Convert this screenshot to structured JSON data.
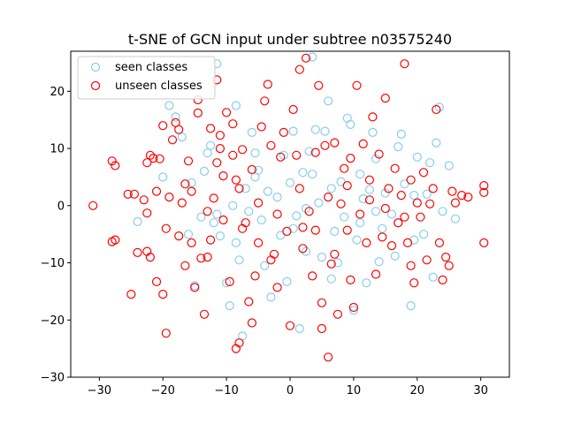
{
  "chart_data": {
    "type": "scatter",
    "title": "t-SNE of GCN input under subtree n03575240",
    "xlabel": "",
    "ylabel": "",
    "xlim": [
      -34.5,
      34.5
    ],
    "ylim": [
      -30,
      27
    ],
    "xticks": [
      -30,
      -20,
      -10,
      0,
      10,
      20,
      30
    ],
    "yticks": [
      -30,
      -20,
      -10,
      0,
      10,
      20
    ],
    "grid": false,
    "legend_position": "upper-left",
    "series": [
      {
        "name": "seen classes",
        "color": "#87ceeb",
        "marker": "hollow-circle",
        "points": [
          [
            -24,
            -2.8
          ],
          [
            -19,
            17.5
          ],
          [
            -18,
            15.5
          ],
          [
            -17,
            12
          ],
          [
            -15.5,
            4
          ],
          [
            -13.5,
            6
          ],
          [
            -13,
            9.2
          ],
          [
            -12.5,
            10.5
          ],
          [
            -11.5,
            24.8
          ],
          [
            -11.5,
            -1.5
          ],
          [
            -12,
            -3
          ],
          [
            -11,
            -5.3
          ],
          [
            -10,
            -13.5
          ],
          [
            -9.5,
            -17.5
          ],
          [
            -8.5,
            17.5
          ],
          [
            -8,
            -9.5
          ],
          [
            -7.5,
            -22.8
          ],
          [
            -7,
            3
          ],
          [
            -6,
            12.8
          ],
          [
            -5.5,
            9.2
          ],
          [
            -5.5,
            5
          ],
          [
            -5,
            6.2
          ],
          [
            -4.5,
            -2.5
          ],
          [
            -4,
            -10.5
          ],
          [
            -3,
            -16
          ],
          [
            -2,
            1.5
          ],
          [
            -1.5,
            -5.2
          ],
          [
            -1,
            8.8
          ],
          [
            -0.5,
            -13.3
          ],
          [
            0,
            4
          ],
          [
            0.5,
            13
          ],
          [
            1,
            -1.8
          ],
          [
            1.5,
            -21.5
          ],
          [
            2,
            5.8
          ],
          [
            2.5,
            -8
          ],
          [
            3,
            9.5
          ],
          [
            3.5,
            26
          ],
          [
            4,
            13.3
          ],
          [
            4.5,
            0.5
          ],
          [
            5,
            -9
          ],
          [
            5.5,
            13
          ],
          [
            6,
            18.3
          ],
          [
            6.5,
            -12.8
          ],
          [
            7,
            -4.5
          ],
          [
            8,
            4.2
          ],
          [
            9,
            15.3
          ],
          [
            9.5,
            14.2
          ],
          [
            10,
            -18.3
          ],
          [
            10.5,
            -6
          ],
          [
            11,
            5.5
          ],
          [
            11.5,
            1.2
          ],
          [
            12.5,
            2.8
          ],
          [
            13,
            12.8
          ],
          [
            13.5,
            8.2
          ],
          [
            14,
            -9.8
          ],
          [
            14.5,
            -4
          ],
          [
            15,
            2.2
          ],
          [
            16,
            -1.5
          ],
          [
            16.5,
            -8.8
          ],
          [
            17,
            10.3
          ],
          [
            17.5,
            12.5
          ],
          [
            18,
            3.8
          ],
          [
            19,
            -17.5
          ],
          [
            19.5,
            1.8
          ],
          [
            20,
            8.5
          ],
          [
            21,
            -5
          ],
          [
            22,
            7.5
          ],
          [
            22.5,
            -12.5
          ],
          [
            23,
            11
          ],
          [
            23.5,
            17.2
          ],
          [
            24,
            -1
          ],
          [
            25,
            7
          ],
          [
            26,
            -2.3
          ],
          [
            -20,
            5
          ],
          [
            -16,
            -5
          ],
          [
            -14,
            -2
          ],
          [
            -9,
            0
          ],
          [
            -6.5,
            -1
          ],
          [
            -3.5,
            2.5
          ],
          [
            0.5,
            -4
          ],
          [
            2.5,
            -0.5
          ],
          [
            3.5,
            5.5
          ],
          [
            6.5,
            3
          ],
          [
            8.5,
            -2
          ],
          [
            11,
            -3
          ],
          [
            13.5,
            -1
          ],
          [
            17,
            -3
          ],
          [
            19.5,
            -6
          ],
          [
            21.5,
            2
          ],
          [
            -15,
            -14
          ],
          [
            -8.5,
            -6.5
          ],
          [
            7.5,
            -10
          ],
          [
            12,
            -13.5
          ]
        ]
      },
      {
        "name": "unseen classes",
        "color": "#ff0000",
        "marker": "hollow-circle",
        "points": [
          [
            -31,
            0
          ],
          [
            -28,
            7.8
          ],
          [
            -27.5,
            7
          ],
          [
            -28,
            -6.3
          ],
          [
            -27.5,
            -6
          ],
          [
            -25.5,
            2
          ],
          [
            -25,
            -15.5
          ],
          [
            -24.5,
            2
          ],
          [
            -24,
            -8.2
          ],
          [
            -22.5,
            -8
          ],
          [
            -22.5,
            7.5
          ],
          [
            -22.5,
            -1.3
          ],
          [
            -22,
            8.8
          ],
          [
            -22,
            -9
          ],
          [
            -21.5,
            8.3
          ],
          [
            -21,
            -13.3
          ],
          [
            -21,
            2.5
          ],
          [
            -20.5,
            8.2
          ],
          [
            -20,
            -15.5
          ],
          [
            -20,
            14
          ],
          [
            -19.5,
            -22.3
          ],
          [
            -19.5,
            -4
          ],
          [
            -19,
            1.5
          ],
          [
            -18.5,
            11.5
          ],
          [
            -18,
            14.5
          ],
          [
            -17.5,
            13.3
          ],
          [
            -17.5,
            -5.3
          ],
          [
            -17,
            0.5
          ],
          [
            -16.5,
            3.8
          ],
          [
            -16.5,
            -10.5
          ],
          [
            -16,
            7.8
          ],
          [
            -15.5,
            -6.5
          ],
          [
            -15,
            -14.3
          ],
          [
            -14.5,
            18.5
          ],
          [
            -14.5,
            16.2
          ],
          [
            -14,
            -9.2
          ],
          [
            -13.5,
            -19
          ],
          [
            -13,
            -9
          ],
          [
            -12.5,
            13.5
          ],
          [
            -12.5,
            -6
          ],
          [
            -12,
            1.3
          ],
          [
            -11.5,
            22
          ],
          [
            -11,
            12.3
          ],
          [
            -11,
            10
          ],
          [
            -10.5,
            5.2
          ],
          [
            -10,
            16.3
          ],
          [
            -9.5,
            -13.3
          ],
          [
            -9,
            8.8
          ],
          [
            -9,
            14.3
          ],
          [
            -8.5,
            -25
          ],
          [
            -8.5,
            4.5
          ],
          [
            -8,
            -24
          ],
          [
            -7.5,
            9.8
          ],
          [
            -7,
            -3
          ],
          [
            -6.5,
            -16.8
          ],
          [
            -6,
            6.3
          ],
          [
            -5.5,
            -12.3
          ],
          [
            -5,
            -6.5
          ],
          [
            -4.5,
            13.8
          ],
          [
            -4,
            18.3
          ],
          [
            -3.5,
            21.2
          ],
          [
            -3,
            10.5
          ],
          [
            -2.5,
            -8.5
          ],
          [
            -2,
            -14.3
          ],
          [
            -1.5,
            8.5
          ],
          [
            -1,
            12.8
          ],
          [
            -0.5,
            -4.5
          ],
          [
            0,
            -21
          ],
          [
            0.5,
            16.8
          ],
          [
            1,
            8.8
          ],
          [
            1.5,
            23.8
          ],
          [
            2,
            -3.8
          ],
          [
            2.5,
            25.8
          ],
          [
            3,
            -1
          ],
          [
            3.5,
            -12.3
          ],
          [
            4,
            9.3
          ],
          [
            4.5,
            21
          ],
          [
            5,
            -17
          ],
          [
            5.5,
            10.5
          ],
          [
            6,
            -26.5
          ],
          [
            6.5,
            -10.2
          ],
          [
            7,
            11
          ],
          [
            7.5,
            -19
          ],
          [
            8,
            0.3
          ],
          [
            8.5,
            6.5
          ],
          [
            9,
            -4.3
          ],
          [
            9.5,
            8.3
          ],
          [
            10,
            -17.8
          ],
          [
            10.5,
            21
          ],
          [
            11,
            -1.5
          ],
          [
            11.5,
            10.8
          ],
          [
            12,
            -6.5
          ],
          [
            12.5,
            4.5
          ],
          [
            13,
            15.5
          ],
          [
            13.5,
            -12
          ],
          [
            14,
            9
          ],
          [
            14.5,
            -5.5
          ],
          [
            15,
            18.8
          ],
          [
            15.5,
            3
          ],
          [
            16,
            -7
          ],
          [
            16.5,
            6.5
          ],
          [
            17,
            -3
          ],
          [
            17.5,
            1.8
          ],
          [
            18,
            24.8
          ],
          [
            18.5,
            -6.5
          ],
          [
            19,
            4.5
          ],
          [
            19.5,
            -13.5
          ],
          [
            20,
            0.5
          ],
          [
            20.5,
            -2
          ],
          [
            21,
            5.8
          ],
          [
            21.5,
            -9.5
          ],
          [
            22,
            0.3
          ],
          [
            22.5,
            3
          ],
          [
            23,
            16.8
          ],
          [
            23.5,
            -6.5
          ],
          [
            24,
            -13
          ],
          [
            24.5,
            -9
          ],
          [
            25,
            -10.5
          ],
          [
            25.5,
            2.5
          ],
          [
            26,
            0.5
          ],
          [
            27,
            1.8
          ],
          [
            28,
            1.5
          ],
          [
            30.5,
            3.5
          ],
          [
            30.5,
            2.3
          ],
          [
            30.5,
            -6.5
          ],
          [
            -23,
            1
          ],
          [
            -13,
            -1
          ],
          [
            -10.5,
            -2.5
          ],
          [
            -7.5,
            -4
          ],
          [
            -5,
            0.5
          ],
          [
            -2,
            -1.5
          ],
          [
            1.5,
            3
          ],
          [
            4,
            -4.3
          ],
          [
            6,
            1.5
          ],
          [
            9,
            3.5
          ],
          [
            12.5,
            1
          ],
          [
            15,
            -0.5
          ],
          [
            18,
            -2
          ],
          [
            -8,
            3
          ],
          [
            -3,
            -9.5
          ],
          [
            2,
            -7.5
          ],
          [
            7,
            -8.5
          ],
          [
            -15.5,
            2.5
          ],
          [
            -11.5,
            7.5
          ],
          [
            -6,
            -20.5
          ],
          [
            5,
            -21.5
          ],
          [
            9.5,
            -13
          ],
          [
            19,
            -10.5
          ]
        ]
      }
    ]
  }
}
